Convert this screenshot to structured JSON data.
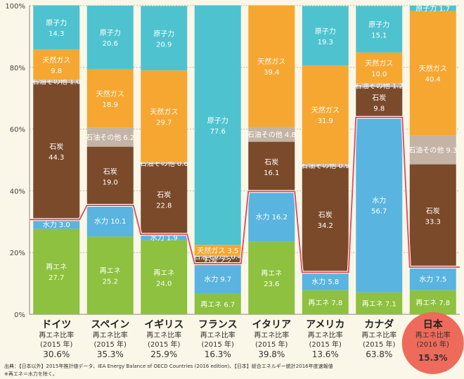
{
  "chart_data": {
    "type": "bar",
    "stacked": true,
    "ylim": [
      0,
      100
    ],
    "y_ticks": [
      "0%",
      "20%",
      "40%",
      "60%",
      "80%",
      "100%"
    ],
    "grid": true,
    "colors": {
      "renewable": "#8dc13f",
      "hydro": "#5ab4e0",
      "coal": "#7a4a2a",
      "oil": "#c3b4a6",
      "gas": "#f6a731",
      "nuclear": "#4ec3cf",
      "boundary_line": "#e2525c",
      "japan_badge": "#ee6a5a",
      "grid": "#b9b6ad"
    },
    "countries": [
      {
        "name": "ドイツ",
        "ratio_label": "再エネ比率",
        "year": "(2015 年)",
        "ratio": "30.6%",
        "segments": [
          {
            "key": "renewable",
            "value": 27.7,
            "label": "再エネ",
            "num": "27.7"
          },
          {
            "key": "hydro",
            "value": 3.0,
            "label": "水力 3.0"
          },
          {
            "key": "coal",
            "value": 44.3,
            "label": "石炭",
            "num": "44.3"
          },
          {
            "key": "oil",
            "value": 1.0,
            "label": "石油その他 1.0"
          },
          {
            "key": "gas",
            "value": 9.8,
            "label": "天然ガス",
            "num": "9.8"
          },
          {
            "key": "nuclear",
            "value": 14.3,
            "label": "原子力",
            "num": "14.3"
          }
        ]
      },
      {
        "name": "スペイン",
        "ratio_label": "再エネ比率",
        "year": "(2015 年)",
        "ratio": "35.3%",
        "segments": [
          {
            "key": "renewable",
            "value": 25.2,
            "label": "再エネ",
            "num": "25.2"
          },
          {
            "key": "hydro",
            "value": 10.1,
            "label": "水力 10.1"
          },
          {
            "key": "coal",
            "value": 19.0,
            "label": "石炭",
            "num": "19.0"
          },
          {
            "key": "oil",
            "value": 6.2,
            "label": "石油その他 6.2"
          },
          {
            "key": "gas",
            "value": 18.9,
            "label": "天然ガス",
            "num": "18.9"
          },
          {
            "key": "nuclear",
            "value": 20.6,
            "label": "原子力",
            "num": "20.6"
          }
        ]
      },
      {
        "name": "イギリス",
        "ratio_label": "再エネ比率",
        "year": "(2015 年)",
        "ratio": "25.9%",
        "segments": [
          {
            "key": "renewable",
            "value": 24.0,
            "label": "再エネ",
            "num": "24.0"
          },
          {
            "key": "hydro",
            "value": 1.9,
            "label": "水力 1.9"
          },
          {
            "key": "coal",
            "value": 22.8,
            "label": "石炭",
            "num": "22.8"
          },
          {
            "key": "oil",
            "value": 0.6,
            "label": "石油その他 0.6"
          },
          {
            "key": "gas",
            "value": 29.7,
            "label": "天然ガス",
            "num": "29.7"
          },
          {
            "key": "nuclear",
            "value": 20.9,
            "label": "原子力",
            "num": "20.9"
          }
        ]
      },
      {
        "name": "フランス",
        "ratio_label": "再エネ比率",
        "year": "(2015 年)",
        "ratio": "16.3%",
        "segments": [
          {
            "key": "renewable",
            "value": 6.7,
            "label": "再エネ 6.7"
          },
          {
            "key": "hydro",
            "value": 9.7,
            "label": "水力 9.7"
          },
          {
            "key": "coal",
            "value": 2.2,
            "label": "石炭 2.2"
          },
          {
            "key": "oil",
            "value": 0.4,
            "label": "石油その他 0.4"
          },
          {
            "key": "gas",
            "value": 3.5,
            "label": "天然ガス 3.5"
          },
          {
            "key": "nuclear",
            "value": 77.6,
            "label": "原子力",
            "num": "77.6"
          }
        ]
      },
      {
        "name": "イタリア",
        "ratio_label": "再エネ比率",
        "year": "(2015 年)",
        "ratio": "39.8%",
        "segments": [
          {
            "key": "renewable",
            "value": 23.6,
            "label": "再エネ",
            "num": "23.6"
          },
          {
            "key": "hydro",
            "value": 16.2,
            "label": "水力 16.2"
          },
          {
            "key": "coal",
            "value": 16.1,
            "label": "石炭",
            "num": "16.1"
          },
          {
            "key": "oil",
            "value": 4.8,
            "label": "石油その他 4.8"
          },
          {
            "key": "gas",
            "value": 39.4,
            "label": "天然ガス",
            "num": "39.4"
          }
        ]
      },
      {
        "name": "アメリカ",
        "ratio_label": "再エネ比率",
        "year": "(2015 年)",
        "ratio": "13.6%",
        "segments": [
          {
            "key": "renewable",
            "value": 7.8,
            "label": "再エネ 7.8"
          },
          {
            "key": "hydro",
            "value": 5.8,
            "label": "水力 5.8"
          },
          {
            "key": "coal",
            "value": 34.2,
            "label": "石炭",
            "num": "34.2"
          },
          {
            "key": "oil",
            "value": 0.9,
            "label": "石油その他 0.9"
          },
          {
            "key": "gas",
            "value": 31.9,
            "label": "天然ガス",
            "num": "31.9"
          },
          {
            "key": "nuclear",
            "value": 19.3,
            "label": "原子力",
            "num": "19.3"
          }
        ]
      },
      {
        "name": "カナダ",
        "ratio_label": "再エネ比率",
        "year": "(2015 年)",
        "ratio": "63.8%",
        "segments": [
          {
            "key": "renewable",
            "value": 7.1,
            "label": "再エネ 7.1"
          },
          {
            "key": "hydro",
            "value": 56.7,
            "label": "水力",
            "num": "56.7"
          },
          {
            "key": "coal",
            "value": 9.8,
            "label": "石炭",
            "num": "9.8"
          },
          {
            "key": "oil",
            "value": 1.2,
            "label": "石油その他 1.2"
          },
          {
            "key": "gas",
            "value": 10.0,
            "label": "天然ガス",
            "num": "10.0"
          },
          {
            "key": "nuclear",
            "value": 15.1,
            "label": "原子力",
            "num": "15.1"
          }
        ]
      },
      {
        "name": "日本",
        "ratio_label": "再エネ比率",
        "year": "(2016 年)",
        "ratio": "15.3%",
        "highlight": true,
        "segments": [
          {
            "key": "renewable",
            "value": 7.8,
            "label": "再エネ 7.8"
          },
          {
            "key": "hydro",
            "value": 7.5,
            "label": "水力 7.5"
          },
          {
            "key": "coal",
            "value": 33.3,
            "label": "石炭",
            "num": "33.3"
          },
          {
            "key": "oil",
            "value": 9.3,
            "label": "石油その他 9.3"
          },
          {
            "key": "gas",
            "value": 40.4,
            "label": "天然ガス",
            "num": "40.4"
          },
          {
            "key": "nuclear",
            "value": 1.7,
            "label": "原子力 1.7"
          }
        ]
      }
    ]
  },
  "footnotes": {
    "source": "出典：【日本以外】2015年推計値データ、IEA Energy Balance of OECD Countries (2016 edition)、【日本】総合エネルギー統計2016年度速報値",
    "note": "※再エネ＝水力を除く。"
  }
}
